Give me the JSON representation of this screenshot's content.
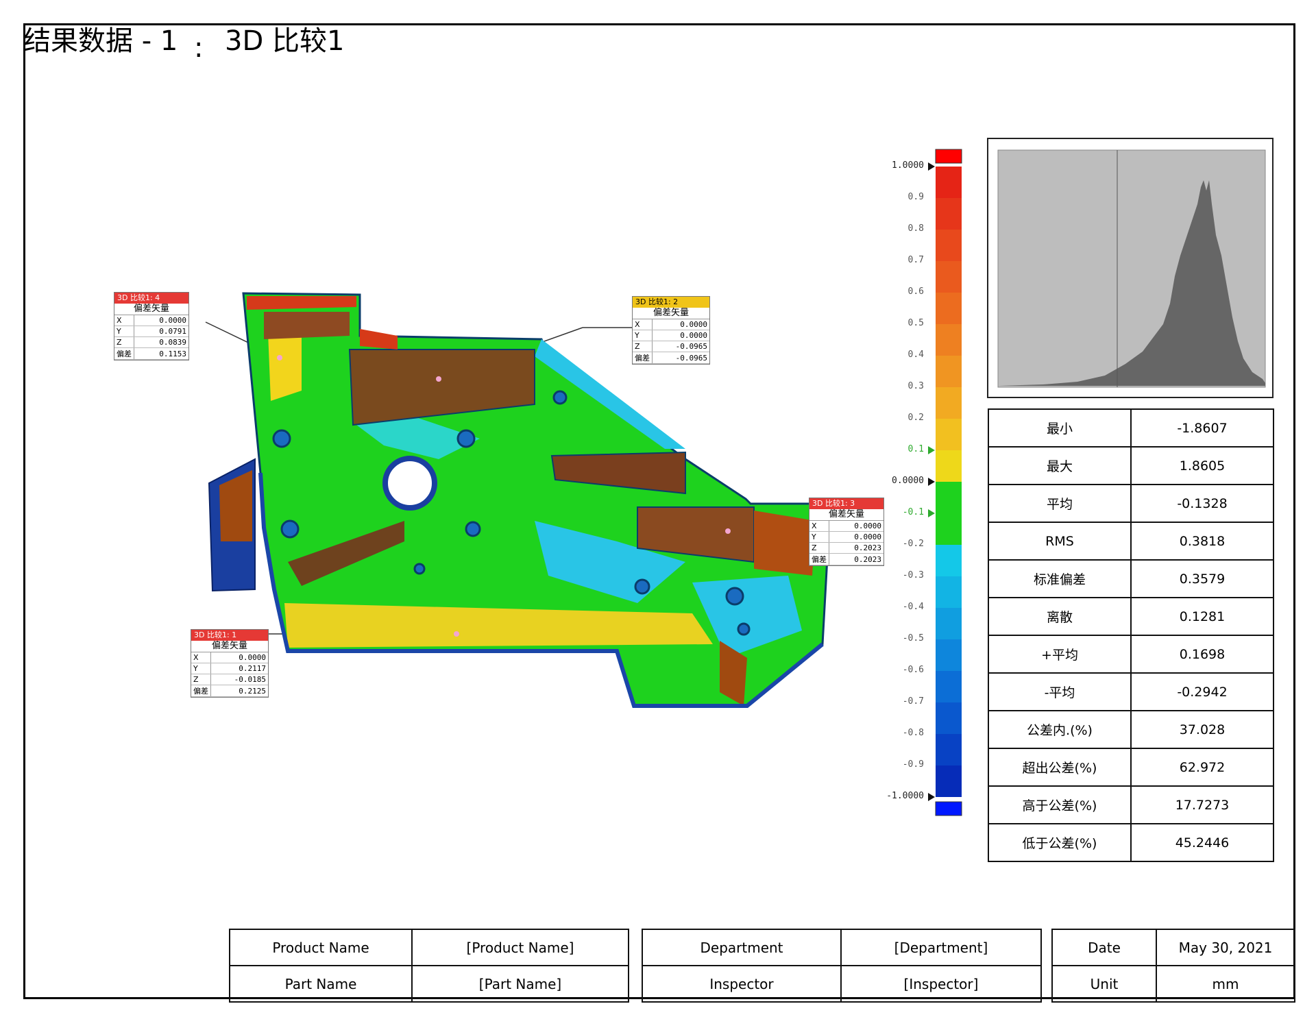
{
  "title": {
    "main": "结果数据 - 1",
    "separator": ":",
    "sub": "3D 比较1"
  },
  "callouts": [
    {
      "header": "3D 比较1: 4",
      "caption": "偏差矢量",
      "rows": [
        {
          "k": "X",
          "v": "0.0000"
        },
        {
          "k": "Y",
          "v": "0.0791"
        },
        {
          "k": "Z",
          "v": "0.0839"
        },
        {
          "k": "偏差",
          "v": "0.1153"
        }
      ]
    },
    {
      "header": "3D 比较1: 2",
      "caption": "偏差矢量",
      "rows": [
        {
          "k": "X",
          "v": "0.0000"
        },
        {
          "k": "Y",
          "v": "0.0000"
        },
        {
          "k": "Z",
          "v": "-0.0965"
        },
        {
          "k": "偏差",
          "v": "-0.0965"
        }
      ]
    },
    {
      "header": "3D 比较1: 3",
      "caption": "偏差矢量",
      "rows": [
        {
          "k": "X",
          "v": "0.0000"
        },
        {
          "k": "Y",
          "v": "0.0000"
        },
        {
          "k": "Z",
          "v": "0.2023"
        },
        {
          "k": "偏差",
          "v": "0.2023"
        }
      ]
    },
    {
      "header": "3D 比较1: 1",
      "caption": "偏差矢量",
      "rows": [
        {
          "k": "X",
          "v": "0.0000"
        },
        {
          "k": "Y",
          "v": "0.2117"
        },
        {
          "k": "Z",
          "v": "-0.0185"
        },
        {
          "k": "偏差",
          "v": "0.2125"
        }
      ]
    }
  ],
  "colorscale": {
    "labels": [
      "1.0000",
      "0.9",
      "0.8",
      "0.7",
      "0.6",
      "0.5",
      "0.4",
      "0.3",
      "0.2",
      "0.1",
      "0.0000",
      "-0.1",
      "-0.2",
      "-0.3",
      "-0.4",
      "-0.5",
      "-0.6",
      "-0.7",
      "-0.8",
      "-0.9",
      "-1.0000"
    ],
    "colors": [
      "#e52416",
      "#e6361a",
      "#e8491c",
      "#ea5a1e",
      "#ec6c1f",
      "#ee8021",
      "#f09522",
      "#f2aa22",
      "#f2c020",
      "#eed81a",
      "#1ed21e",
      "#1ed21e",
      "#14c8e8",
      "#12b4e4",
      "#109ee0",
      "#0e86dc",
      "#0c6ed6",
      "#0a58ce",
      "#0842c4",
      "#062cb8"
    ],
    "over_color": "#ff0000",
    "under_color": "#0018ff"
  },
  "stats": [
    {
      "label": "最小",
      "value": "-1.8607"
    },
    {
      "label": "最大",
      "value": "1.8605"
    },
    {
      "label": "平均",
      "value": "-0.1328"
    },
    {
      "label": "RMS",
      "value": "0.3818"
    },
    {
      "label": "标准偏差",
      "value": "0.3579"
    },
    {
      "label": "离散",
      "value": "0.1281"
    },
    {
      "label": "+平均",
      "value": "0.1698"
    },
    {
      "label": "-平均",
      "value": "-0.2942"
    },
    {
      "label": "公差内.(%)",
      "value": "37.028"
    },
    {
      "label": "超出公差(%)",
      "value": "62.972"
    },
    {
      "label": "高于公差(%)",
      "value": "17.7273"
    },
    {
      "label": "低于公差(%)",
      "value": "45.2446"
    }
  ],
  "footer": {
    "product_name_label": "Product Name",
    "product_name_value": "[Product Name]",
    "part_name_label": "Part Name",
    "part_name_value": "[Part Name]",
    "department_label": "Department",
    "department_value": "[Department]",
    "inspector_label": "Inspector",
    "inspector_value": "[Inspector]",
    "date_label": "Date",
    "date_value": "May 30, 2021",
    "unit_label": "Unit",
    "unit_value": "mm"
  }
}
